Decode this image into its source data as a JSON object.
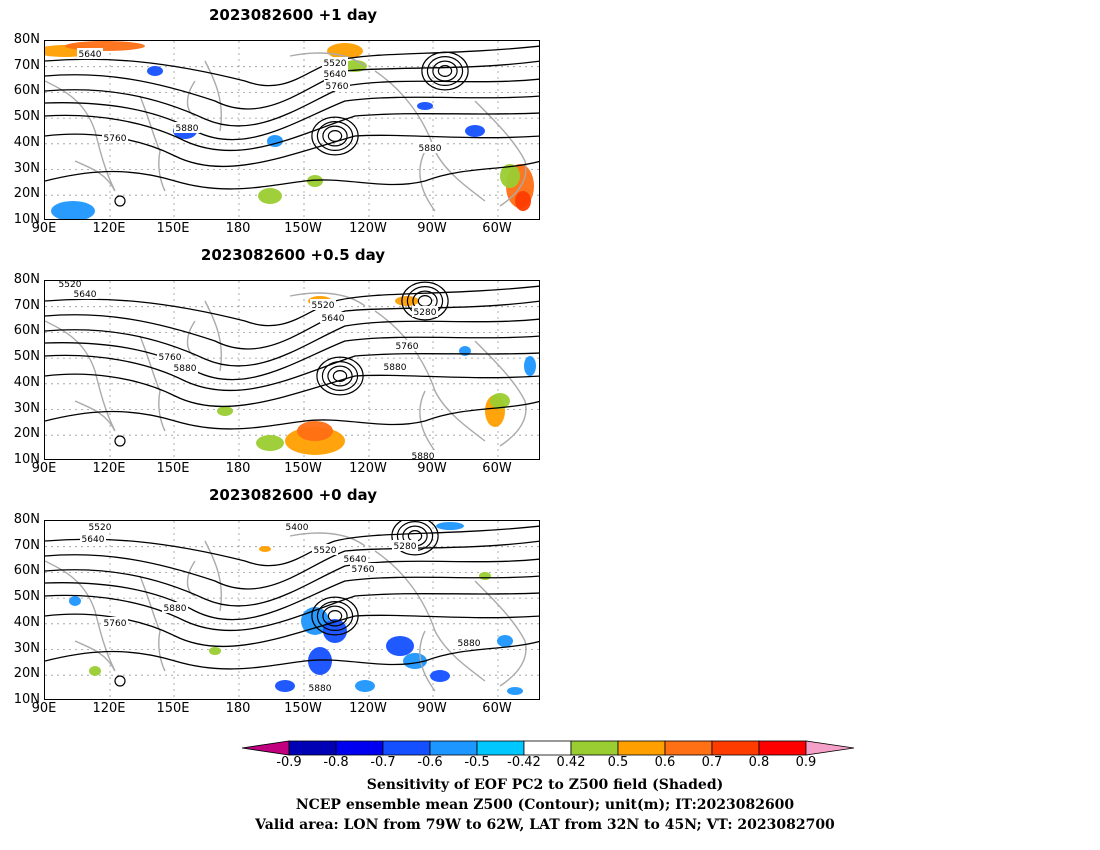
{
  "panels": [
    {
      "title": "2023082600  +1 day",
      "contour_labels": [
        "5640",
        "5520",
        "5640",
        "5760",
        "5760",
        "5880",
        "5880"
      ]
    },
    {
      "title": "2023082600  +0.5 day",
      "contour_labels": [
        "5520",
        "5640",
        "5520",
        "5280",
        "5640",
        "5760",
        "5760",
        "5880",
        "5880",
        "5880"
      ]
    },
    {
      "title": "2023082600  +0 day",
      "contour_labels": [
        "5520",
        "5640",
        "5400",
        "5280",
        "5520",
        "5640",
        "5760",
        "5880",
        "5760",
        "5880",
        "5880"
      ]
    }
  ],
  "y_ticks": [
    "80N",
    "70N",
    "60N",
    "50N",
    "40N",
    "30N",
    "20N",
    "10N"
  ],
  "x_ticks": [
    "90E",
    "120E",
    "150E",
    "180",
    "150W",
    "120W",
    "90W",
    "60W"
  ],
  "colorbar": {
    "ticks": [
      "-0.9",
      "-0.8",
      "-0.7",
      "-0.6",
      "-0.5",
      "-0.42",
      "0.42",
      "0.5",
      "0.6",
      "0.7",
      "0.8",
      "0.9"
    ],
    "colors": [
      "#c0007f",
      "#0000b4",
      "#0000f0",
      "#1450ff",
      "#1e96ff",
      "#00c8ff",
      "#ffffff",
      "#9acd32",
      "#ff9f00",
      "#ff6f14",
      "#ff3c00",
      "#ff0000",
      "#f5a0c8"
    ]
  },
  "captions": {
    "line1": "Sensitivity of EOF PC2 to Z500 field (Shaded)",
    "line2": "NCEP ensemble mean Z500 (Contour); unit(m); IT:2023082600",
    "line3": "Valid area: LON from 79W to 62W, LAT from 32N to 45N; VT: 2023082700"
  }
}
